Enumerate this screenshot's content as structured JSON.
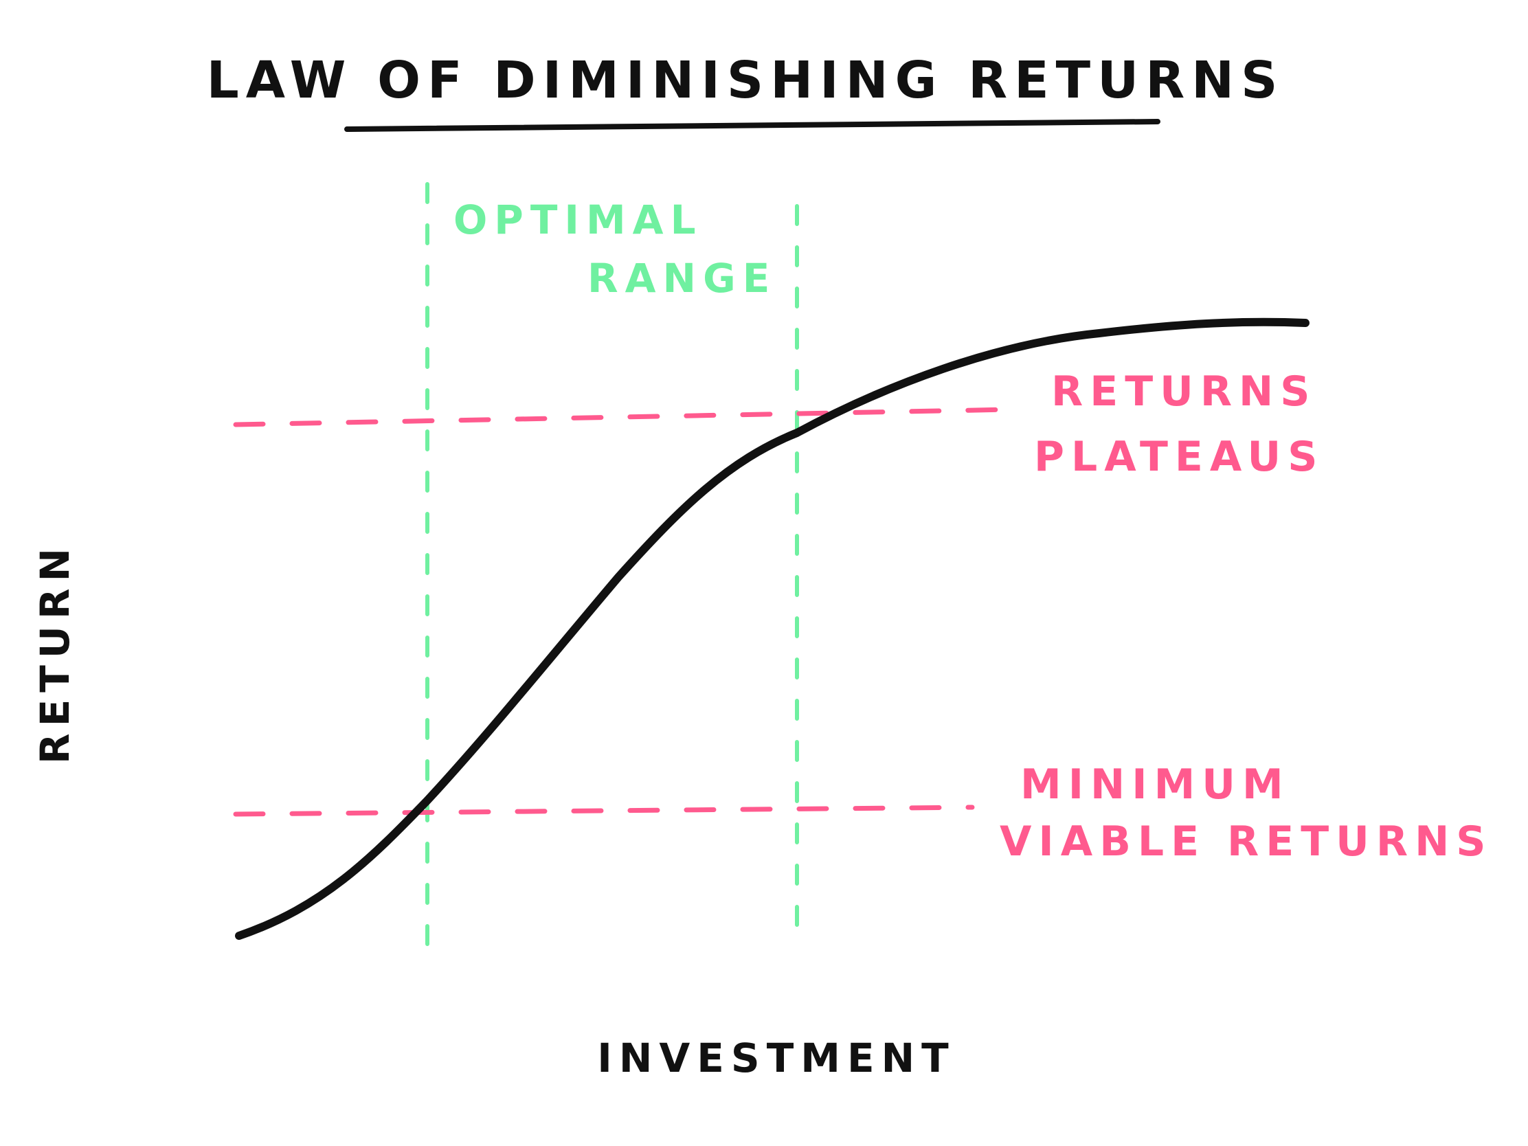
{
  "title": "LAW OF DIMINISHING RETURNS",
  "y_axis_label": "RETURN",
  "x_axis_label": "INVESTMENT",
  "zones": {
    "optimal_line1": "OPTIMAL",
    "optimal_line2": "RANGE"
  },
  "thresholds": {
    "plateau_line1": "RETURNS",
    "plateau_line2": "PLATEAUS",
    "minimum_line1": "MINIMUM",
    "minimum_line2": "VIABLE RETURNS"
  },
  "colors": {
    "ink": "#111111",
    "green": "#6ff0a0",
    "pink": "#ff5a8e"
  }
}
